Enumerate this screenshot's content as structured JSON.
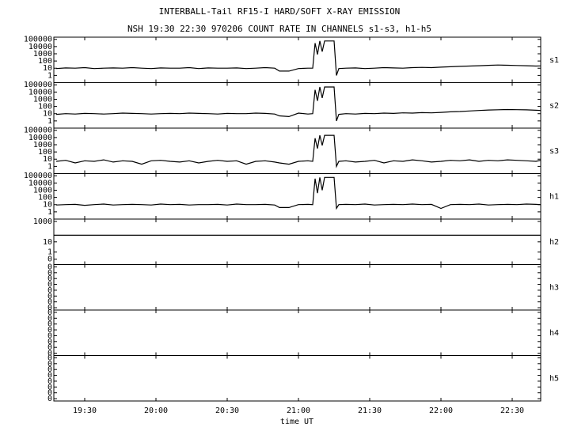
{
  "title": "INTERBALL-Tail RF15-I HARD/SOFT X-RAY EMISSION",
  "subtitle": "NSH 19:30 22:30 970206  COUNT RATE IN CHANNELS s1-s3, h1-h5",
  "x_axis": {
    "xlim": [
      "19:17",
      "22:42"
    ],
    "xticks": [
      "19:30",
      "20:00",
      "20:30",
      "21:00",
      "21:30",
      "22:00",
      "22:30"
    ],
    "label": "time UT"
  },
  "chart_data": [
    {
      "type": "line",
      "name": "s1",
      "log": true,
      "color": "#000000",
      "ylim": [
        0.1,
        200000
      ],
      "yticks": [
        1,
        10,
        100,
        1000,
        10000,
        100000
      ],
      "x": [
        "19:18",
        "19:22",
        "19:26",
        "19:30",
        "19:34",
        "19:38",
        "19:42",
        "19:46",
        "19:50",
        "19:54",
        "19:58",
        "20:02",
        "20:06",
        "20:10",
        "20:14",
        "20:18",
        "20:22",
        "20:26",
        "20:30",
        "20:34",
        "20:38",
        "20:42",
        "20:46",
        "20:50",
        "20:52",
        "20:56",
        "21:00",
        "21:04",
        "21:06",
        "21:07",
        "21:08",
        "21:09",
        "21:10",
        "21:11",
        "21:12",
        "21:14",
        "21:15",
        "21:16",
        "21:17",
        "21:20",
        "21:24",
        "21:28",
        "21:32",
        "21:36",
        "21:40",
        "21:44",
        "21:48",
        "21:52",
        "21:56",
        "22:00",
        "22:04",
        "22:08",
        "22:12",
        "22:16",
        "22:20",
        "22:24",
        "22:28",
        "22:32",
        "22:36",
        "22:40",
        "22:42"
      ],
      "values": [
        9,
        11,
        10,
        12,
        9,
        10,
        11,
        10,
        12,
        10,
        9,
        11,
        10,
        10,
        12,
        9,
        11,
        10,
        10,
        11,
        9,
        10,
        12,
        10,
        4,
        4,
        9,
        10,
        10,
        30000,
        800,
        60000,
        2000,
        60000,
        60000,
        60000,
        60000,
        1,
        9,
        10,
        11,
        9,
        10,
        12,
        11,
        10,
        12,
        13,
        12,
        14,
        16,
        18,
        20,
        22,
        25,
        28,
        26,
        24,
        22,
        20,
        21
      ]
    },
    {
      "type": "line",
      "name": "s2",
      "log": true,
      "color": "#000000",
      "ylim": [
        0.1,
        200000
      ],
      "yticks": [
        1,
        10,
        100,
        1000,
        10000,
        100000
      ],
      "x": [
        "19:18",
        "19:22",
        "19:26",
        "19:30",
        "19:34",
        "19:38",
        "19:42",
        "19:46",
        "19:50",
        "19:54",
        "19:58",
        "20:02",
        "20:06",
        "20:10",
        "20:14",
        "20:18",
        "20:22",
        "20:26",
        "20:30",
        "20:34",
        "20:38",
        "20:42",
        "20:46",
        "20:50",
        "20:52",
        "20:56",
        "21:00",
        "21:04",
        "21:06",
        "21:07",
        "21:08",
        "21:09",
        "21:10",
        "21:11",
        "21:12",
        "21:14",
        "21:15",
        "21:16",
        "21:17",
        "21:20",
        "21:24",
        "21:28",
        "21:32",
        "21:36",
        "21:40",
        "21:44",
        "21:48",
        "21:52",
        "21:56",
        "22:00",
        "22:04",
        "22:08",
        "22:12",
        "22:16",
        "22:20",
        "22:24",
        "22:28",
        "22:32",
        "22:36",
        "22:40",
        "22:42"
      ],
      "values": [
        8,
        10,
        9,
        11,
        10,
        9,
        10,
        12,
        11,
        10,
        9,
        10,
        11,
        10,
        12,
        11,
        10,
        9,
        11,
        10,
        10,
        12,
        11,
        9,
        5,
        4,
        12,
        9,
        10,
        20000,
        600,
        50000,
        1500,
        50000,
        50000,
        50000,
        50000,
        1,
        8,
        10,
        9,
        11,
        10,
        12,
        11,
        13,
        12,
        14,
        13,
        15,
        18,
        20,
        24,
        28,
        32,
        35,
        38,
        36,
        34,
        30,
        28
      ]
    },
    {
      "type": "line",
      "name": "s3",
      "log": true,
      "color": "#000000",
      "ylim": [
        0.1,
        200000
      ],
      "yticks": [
        1,
        10,
        100,
        1000,
        10000,
        100000
      ],
      "x": [
        "19:18",
        "19:22",
        "19:26",
        "19:30",
        "19:34",
        "19:38",
        "19:42",
        "19:46",
        "19:50",
        "19:54",
        "19:58",
        "20:02",
        "20:06",
        "20:10",
        "20:14",
        "20:18",
        "20:22",
        "20:26",
        "20:30",
        "20:34",
        "20:38",
        "20:42",
        "20:46",
        "20:50",
        "20:52",
        "20:56",
        "21:00",
        "21:04",
        "21:06",
        "21:07",
        "21:08",
        "21:09",
        "21:10",
        "21:11",
        "21:12",
        "21:14",
        "21:15",
        "21:16",
        "21:17",
        "21:20",
        "21:24",
        "21:28",
        "21:32",
        "21:36",
        "21:40",
        "21:44",
        "21:48",
        "21:52",
        "21:56",
        "22:00",
        "22:04",
        "22:08",
        "22:12",
        "22:16",
        "22:20",
        "22:24",
        "22:28",
        "22:32",
        "22:36",
        "22:40",
        "22:42"
      ],
      "values": [
        5,
        7,
        3,
        6,
        5,
        8,
        4,
        6,
        5,
        2,
        6,
        7,
        5,
        4,
        6,
        3,
        5,
        7,
        5,
        6,
        2,
        5,
        6,
        4,
        3,
        2,
        5,
        6,
        5,
        8000,
        300,
        20000,
        800,
        20000,
        20000,
        20000,
        20000,
        1,
        5,
        6,
        4,
        5,
        7,
        3,
        6,
        5,
        8,
        6,
        4,
        5,
        7,
        6,
        8,
        5,
        7,
        6,
        8,
        7,
        6,
        5,
        7
      ]
    },
    {
      "type": "line",
      "name": "h1",
      "log": true,
      "color": "#000000",
      "ylim": [
        0.1,
        200000
      ],
      "yticks": [
        1,
        10,
        100,
        1000,
        10000,
        100000
      ],
      "x": [
        "19:18",
        "19:22",
        "19:26",
        "19:30",
        "19:34",
        "19:38",
        "19:42",
        "19:46",
        "19:50",
        "19:54",
        "19:58",
        "20:02",
        "20:06",
        "20:10",
        "20:14",
        "20:18",
        "20:22",
        "20:26",
        "20:30",
        "20:34",
        "20:38",
        "20:42",
        "20:46",
        "20:50",
        "20:52",
        "20:56",
        "21:00",
        "21:04",
        "21:06",
        "21:07",
        "21:08",
        "21:09",
        "21:10",
        "21:11",
        "21:12",
        "21:14",
        "21:15",
        "21:16",
        "21:17",
        "21:20",
        "21:24",
        "21:28",
        "21:32",
        "21:36",
        "21:40",
        "21:44",
        "21:48",
        "21:52",
        "21:56",
        "22:00",
        "22:04",
        "22:08",
        "22:12",
        "22:16",
        "22:20",
        "22:24",
        "22:28",
        "22:32",
        "22:36",
        "22:40",
        "22:42"
      ],
      "values": [
        9,
        10,
        11,
        8,
        10,
        12,
        9,
        10,
        11,
        10,
        9,
        12,
        10,
        11,
        9,
        10,
        10,
        11,
        9,
        12,
        10,
        10,
        11,
        9,
        4,
        4,
        10,
        11,
        10,
        40000,
        400,
        60000,
        1000,
        60000,
        60000,
        60000,
        60000,
        3,
        10,
        11,
        10,
        12,
        9,
        10,
        11,
        10,
        12,
        10,
        11,
        3,
        10,
        11,
        10,
        12,
        9,
        10,
        11,
        10,
        12,
        11,
        10
      ]
    },
    {
      "type": "line",
      "name": "h2",
      "log": true,
      "color": "#000000",
      "ylim": [
        0.06,
        1700
      ],
      "yticks": [
        {
          "value": 0.2,
          "label": "0"
        },
        1,
        10,
        1000
      ],
      "x": [
        "19:17",
        "22:42"
      ],
      "values": [
        45,
        45
      ]
    },
    {
      "type": "line",
      "name": "h3",
      "log": false,
      "ylim": [
        -0.02,
        0.37
      ],
      "yticks": [
        0,
        {
          "value": 0.05,
          "label": "0"
        },
        {
          "value": 0.1,
          "label": "0"
        },
        {
          "value": 0.15,
          "label": "0"
        },
        {
          "value": 0.2,
          "label": "0"
        },
        {
          "value": 0.25,
          "label": "0"
        },
        {
          "value": 0.3,
          "label": "0"
        },
        {
          "value": 0.35,
          "label": "0"
        }
      ]
    },
    {
      "type": "line",
      "name": "h4",
      "log": false,
      "ylim": [
        -0.02,
        0.37
      ],
      "yticks": [
        0,
        {
          "value": 0.05,
          "label": "0"
        },
        {
          "value": 0.1,
          "label": "0"
        },
        {
          "value": 0.15,
          "label": "0"
        },
        {
          "value": 0.2,
          "label": "0"
        },
        {
          "value": 0.25,
          "label": "0"
        },
        {
          "value": 0.3,
          "label": "0"
        },
        {
          "value": 0.35,
          "label": "0"
        }
      ]
    },
    {
      "type": "line",
      "name": "h5",
      "log": false,
      "ylim": [
        -0.02,
        0.37
      ],
      "yticks": [
        0,
        {
          "value": 0.05,
          "label": "0"
        },
        {
          "value": 0.1,
          "label": "0"
        },
        {
          "value": 0.15,
          "label": "0"
        },
        {
          "value": 0.2,
          "label": "0"
        },
        {
          "value": 0.25,
          "label": "0"
        },
        {
          "value": 0.3,
          "label": "0"
        },
        {
          "value": 0.35,
          "label": "0"
        }
      ]
    }
  ]
}
